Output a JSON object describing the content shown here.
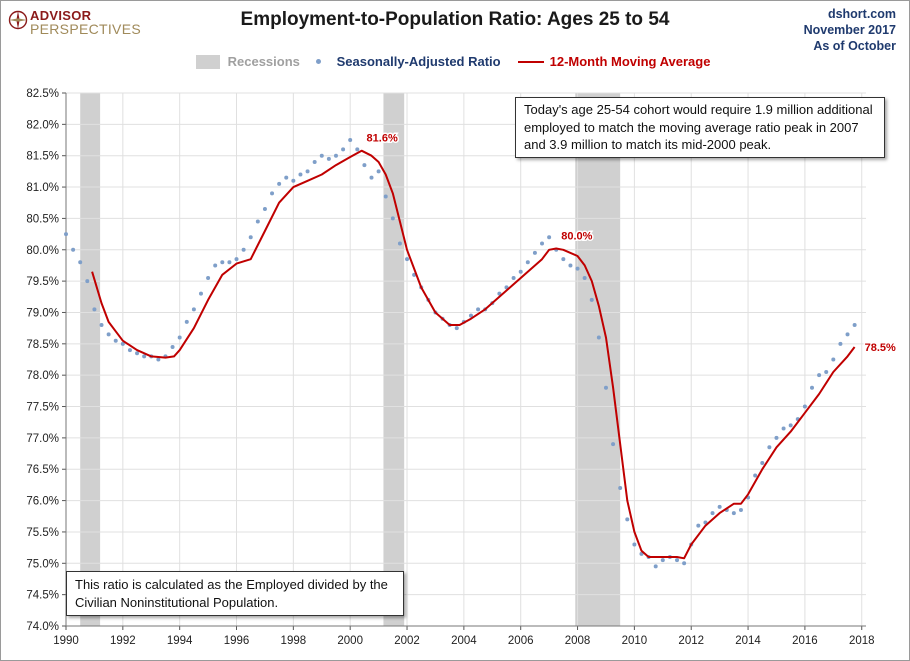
{
  "brand": {
    "line1": "ADVISOR",
    "line2": "PERSPECTIVES",
    "logo_icon": "compass-rose-icon"
  },
  "source": {
    "site": "dshort.com",
    "date": "November 2017",
    "asof": "As of October"
  },
  "legend": {
    "recessions": "Recessions",
    "ratio": "Seasonally-Adjusted Ratio",
    "ma": "12-Month Moving Average"
  },
  "annotations": {
    "top_right": "Today's age 25-54  cohort would require 1.9 million additional employed to match the moving average ratio peak in 2007  and 3.9 million to match its mid-2000 peak.",
    "bottom_left": "This ratio is calculated as the Employed divided by the Civilian Noninstitutional Population."
  },
  "colors": {
    "recession": "#d0d0d0",
    "ratio_dots": "#7f9fc9",
    "ma_line": "#c00000",
    "title": "#1a1a1a",
    "source": "#1f3a6e",
    "brand": "#8b1a1a",
    "gridline": "#e0e0e0"
  },
  "chart_data": {
    "type": "line",
    "title": "Employment-to-Population Ratio: Ages 25 to 54",
    "xlabel": "",
    "ylabel": "",
    "xlim": [
      1990,
      2018.15
    ],
    "ylim": [
      74.0,
      82.5
    ],
    "x_ticks": [
      "1990",
      "1992",
      "1994",
      "1996",
      "1998",
      "2000",
      "2002",
      "2004",
      "2006",
      "2008",
      "2010",
      "2012",
      "2014",
      "2016",
      "2018"
    ],
    "y_ticks": [
      "74.0%",
      "74.5%",
      "75.0%",
      "75.5%",
      "76.0%",
      "76.5%",
      "77.0%",
      "77.5%",
      "78.0%",
      "78.5%",
      "79.0%",
      "79.5%",
      "80.0%",
      "80.5%",
      "81.0%",
      "81.5%",
      "82.0%",
      "82.5%"
    ],
    "grid": true,
    "legend_position": "top",
    "recessions": [
      {
        "start": 1990.5,
        "end": 1991.2
      },
      {
        "start": 2001.17,
        "end": 2001.9
      },
      {
        "start": 2007.92,
        "end": 2009.5
      }
    ],
    "series": [
      {
        "name": "Seasonally-Adjusted Ratio",
        "kind": "scatter",
        "points": [
          [
            1990.0,
            80.25
          ],
          [
            1990.25,
            80.0
          ],
          [
            1990.5,
            79.8
          ],
          [
            1990.75,
            79.5
          ],
          [
            1991.0,
            79.05
          ],
          [
            1991.25,
            78.8
          ],
          [
            1991.5,
            78.65
          ],
          [
            1991.75,
            78.55
          ],
          [
            1992.0,
            78.5
          ],
          [
            1992.25,
            78.4
          ],
          [
            1992.5,
            78.35
          ],
          [
            1992.75,
            78.3
          ],
          [
            1993.0,
            78.3
          ],
          [
            1993.25,
            78.25
          ],
          [
            1993.5,
            78.3
          ],
          [
            1993.75,
            78.45
          ],
          [
            1994.0,
            78.6
          ],
          [
            1994.25,
            78.85
          ],
          [
            1994.5,
            79.05
          ],
          [
            1994.75,
            79.3
          ],
          [
            1995.0,
            79.55
          ],
          [
            1995.25,
            79.75
          ],
          [
            1995.5,
            79.8
          ],
          [
            1995.75,
            79.8
          ],
          [
            1996.0,
            79.85
          ],
          [
            1996.25,
            80.0
          ],
          [
            1996.5,
            80.2
          ],
          [
            1996.75,
            80.45
          ],
          [
            1997.0,
            80.65
          ],
          [
            1997.25,
            80.9
          ],
          [
            1997.5,
            81.05
          ],
          [
            1997.75,
            81.15
          ],
          [
            1998.0,
            81.1
          ],
          [
            1998.25,
            81.2
          ],
          [
            1998.5,
            81.25
          ],
          [
            1998.75,
            81.4
          ],
          [
            1999.0,
            81.5
          ],
          [
            1999.25,
            81.45
          ],
          [
            1999.5,
            81.5
          ],
          [
            1999.75,
            81.6
          ],
          [
            2000.0,
            81.75
          ],
          [
            2000.25,
            81.6
          ],
          [
            2000.5,
            81.35
          ],
          [
            2000.75,
            81.15
          ],
          [
            2001.0,
            81.25
          ],
          [
            2001.25,
            80.85
          ],
          [
            2001.5,
            80.5
          ],
          [
            2001.75,
            80.1
          ],
          [
            2002.0,
            79.85
          ],
          [
            2002.25,
            79.6
          ],
          [
            2002.5,
            79.4
          ],
          [
            2002.75,
            79.2
          ],
          [
            2003.0,
            79.0
          ],
          [
            2003.25,
            78.9
          ],
          [
            2003.5,
            78.8
          ],
          [
            2003.75,
            78.75
          ],
          [
            2004.0,
            78.85
          ],
          [
            2004.25,
            78.95
          ],
          [
            2004.5,
            79.05
          ],
          [
            2004.75,
            79.05
          ],
          [
            2005.0,
            79.15
          ],
          [
            2005.25,
            79.3
          ],
          [
            2005.5,
            79.4
          ],
          [
            2005.75,
            79.55
          ],
          [
            2006.0,
            79.65
          ],
          [
            2006.25,
            79.8
          ],
          [
            2006.5,
            79.95
          ],
          [
            2006.75,
            80.1
          ],
          [
            2007.0,
            80.2
          ],
          [
            2007.25,
            80.0
          ],
          [
            2007.5,
            79.85
          ],
          [
            2007.75,
            79.75
          ],
          [
            2008.0,
            79.7
          ],
          [
            2008.25,
            79.55
          ],
          [
            2008.5,
            79.2
          ],
          [
            2008.75,
            78.6
          ],
          [
            2009.0,
            77.8
          ],
          [
            2009.25,
            76.9
          ],
          [
            2009.5,
            76.2
          ],
          [
            2009.75,
            75.7
          ],
          [
            2010.0,
            75.3
          ],
          [
            2010.25,
            75.15
          ],
          [
            2010.5,
            75.1
          ],
          [
            2010.75,
            74.95
          ],
          [
            2011.0,
            75.05
          ],
          [
            2011.25,
            75.1
          ],
          [
            2011.5,
            75.05
          ],
          [
            2011.75,
            75.0
          ],
          [
            2012.0,
            75.3
          ],
          [
            2012.25,
            75.6
          ],
          [
            2012.5,
            75.65
          ],
          [
            2012.75,
            75.8
          ],
          [
            2013.0,
            75.9
          ],
          [
            2013.25,
            75.85
          ],
          [
            2013.5,
            75.8
          ],
          [
            2013.75,
            75.85
          ],
          [
            2014.0,
            76.05
          ],
          [
            2014.25,
            76.4
          ],
          [
            2014.5,
            76.6
          ],
          [
            2014.75,
            76.85
          ],
          [
            2015.0,
            77.0
          ],
          [
            2015.25,
            77.15
          ],
          [
            2015.5,
            77.2
          ],
          [
            2015.75,
            77.3
          ],
          [
            2016.0,
            77.5
          ],
          [
            2016.25,
            77.8
          ],
          [
            2016.5,
            78.0
          ],
          [
            2016.75,
            78.05
          ],
          [
            2017.0,
            78.25
          ],
          [
            2017.25,
            78.5
          ],
          [
            2017.5,
            78.65
          ],
          [
            2017.75,
            78.8
          ]
        ]
      },
      {
        "name": "12-Month Moving Average",
        "kind": "line",
        "points": [
          [
            1990.92,
            79.65
          ],
          [
            1991.25,
            79.15
          ],
          [
            1991.5,
            78.85
          ],
          [
            1991.75,
            78.7
          ],
          [
            1992.0,
            78.55
          ],
          [
            1992.5,
            78.4
          ],
          [
            1993.0,
            78.3
          ],
          [
            1993.5,
            78.28
          ],
          [
            1993.8,
            78.3
          ],
          [
            1994.0,
            78.4
          ],
          [
            1994.5,
            78.75
          ],
          [
            1995.0,
            79.2
          ],
          [
            1995.5,
            79.6
          ],
          [
            1996.0,
            79.78
          ],
          [
            1996.5,
            79.85
          ],
          [
            1997.0,
            80.3
          ],
          [
            1997.5,
            80.75
          ],
          [
            1998.0,
            81.0
          ],
          [
            1998.5,
            81.1
          ],
          [
            1999.0,
            81.2
          ],
          [
            1999.5,
            81.35
          ],
          [
            2000.0,
            81.48
          ],
          [
            2000.4,
            81.58
          ],
          [
            2000.75,
            81.5
          ],
          [
            2001.0,
            81.4
          ],
          [
            2001.25,
            81.2
          ],
          [
            2001.5,
            80.9
          ],
          [
            2001.75,
            80.45
          ],
          [
            2002.0,
            80.0
          ],
          [
            2002.5,
            79.4
          ],
          [
            2003.0,
            79.0
          ],
          [
            2003.5,
            78.8
          ],
          [
            2003.85,
            78.8
          ],
          [
            2004.25,
            78.9
          ],
          [
            2004.75,
            79.05
          ],
          [
            2005.25,
            79.25
          ],
          [
            2005.75,
            79.45
          ],
          [
            2006.25,
            79.65
          ],
          [
            2006.75,
            79.85
          ],
          [
            2007.0,
            80.0
          ],
          [
            2007.25,
            80.02
          ],
          [
            2007.5,
            80.0
          ],
          [
            2008.0,
            79.9
          ],
          [
            2008.25,
            79.75
          ],
          [
            2008.5,
            79.5
          ],
          [
            2008.75,
            79.1
          ],
          [
            2009.0,
            78.6
          ],
          [
            2009.25,
            77.8
          ],
          [
            2009.5,
            76.9
          ],
          [
            2009.75,
            76.0
          ],
          [
            2010.0,
            75.5
          ],
          [
            2010.25,
            75.2
          ],
          [
            2010.5,
            75.1
          ],
          [
            2010.75,
            75.1
          ],
          [
            2011.0,
            75.1
          ],
          [
            2011.25,
            75.1
          ],
          [
            2011.5,
            75.1
          ],
          [
            2011.75,
            75.08
          ],
          [
            2012.0,
            75.3
          ],
          [
            2012.5,
            75.6
          ],
          [
            2013.0,
            75.8
          ],
          [
            2013.5,
            75.95
          ],
          [
            2013.75,
            75.95
          ],
          [
            2014.0,
            76.1
          ],
          [
            2014.5,
            76.5
          ],
          [
            2015.0,
            76.85
          ],
          [
            2015.5,
            77.1
          ],
          [
            2016.0,
            77.4
          ],
          [
            2016.5,
            77.7
          ],
          [
            2017.0,
            78.05
          ],
          [
            2017.5,
            78.3
          ],
          [
            2017.75,
            78.45
          ]
        ]
      }
    ],
    "labels": [
      {
        "text": "81.6%",
        "x": 2000.4,
        "y": 81.58
      },
      {
        "text": "80.0%",
        "x": 2007.25,
        "y": 80.02
      },
      {
        "text": "78.5%",
        "x": 2017.75,
        "y": 78.45
      }
    ]
  }
}
